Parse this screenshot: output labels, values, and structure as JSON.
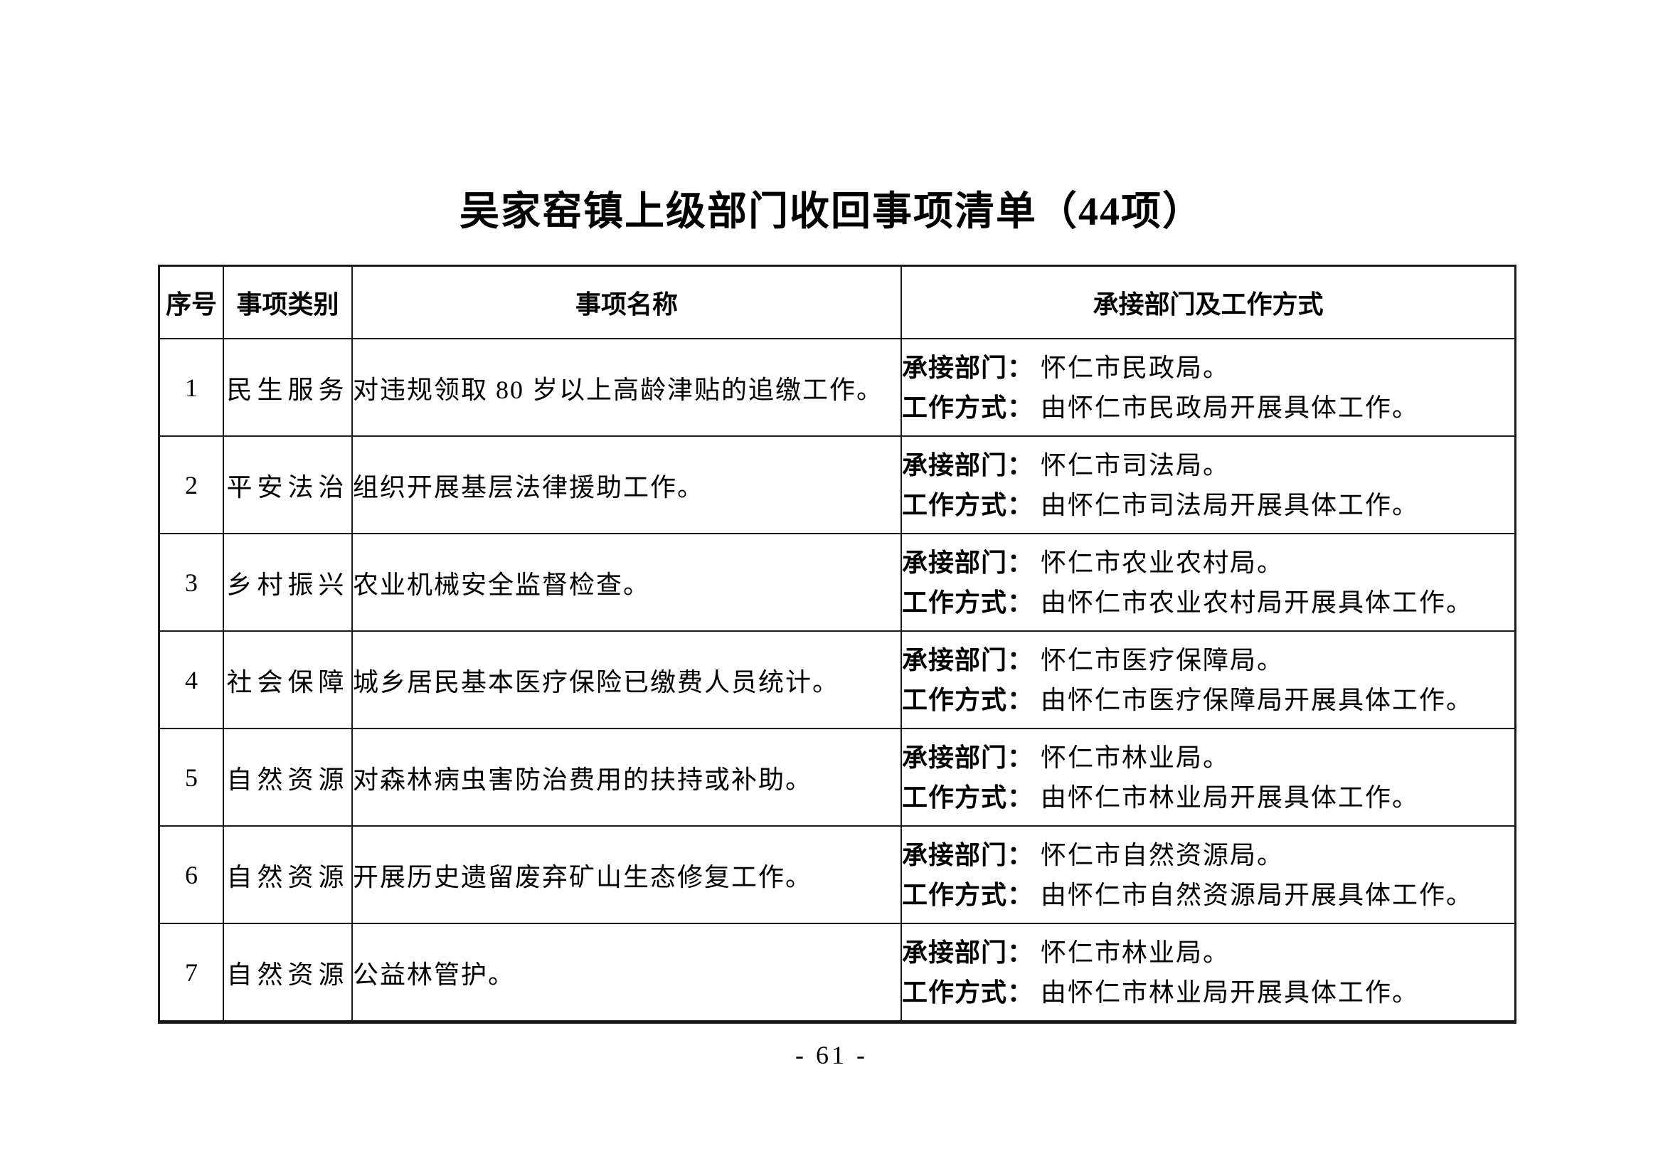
{
  "page": {
    "title": "吴家窑镇上级部门收回事项清单（44项）",
    "page_number": "- 61 -"
  },
  "table": {
    "headers": [
      "序号",
      "事项类别",
      "事项名称",
      "承接部门及工作方式"
    ],
    "dept_label": "承接部门：",
    "method_label": "工作方式：",
    "rows": [
      {
        "no": "1",
        "category": "民生服务",
        "name": "对违规领取 80 岁以上高龄津贴的追缴工作。",
        "dept": "怀仁市民政局。",
        "method": "由怀仁市民政局开展具体工作。"
      },
      {
        "no": "2",
        "category": "平安法治",
        "name": "组织开展基层法律援助工作。",
        "dept": "怀仁市司法局。",
        "method": "由怀仁市司法局开展具体工作。"
      },
      {
        "no": "3",
        "category": "乡村振兴",
        "name": "农业机械安全监督检查。",
        "dept": "怀仁市农业农村局。",
        "method": "由怀仁市农业农村局开展具体工作。"
      },
      {
        "no": "4",
        "category": "社会保障",
        "name": "城乡居民基本医疗保险已缴费人员统计。",
        "dept": "怀仁市医疗保障局。",
        "method": "由怀仁市医疗保障局开展具体工作。"
      },
      {
        "no": "5",
        "category": "自然资源",
        "name": "对森林病虫害防治费用的扶持或补助。",
        "dept": "怀仁市林业局。",
        "method": "由怀仁市林业局开展具体工作。"
      },
      {
        "no": "6",
        "category": "自然资源",
        "name": "开展历史遗留废弃矿山生态修复工作。",
        "dept": "怀仁市自然资源局。",
        "method": "由怀仁市自然资源局开展具体工作。"
      },
      {
        "no": "7",
        "category": "自然资源",
        "name": "公益林管护。",
        "dept": "怀仁市林业局。",
        "method": "由怀仁市林业局开展具体工作。"
      }
    ]
  }
}
